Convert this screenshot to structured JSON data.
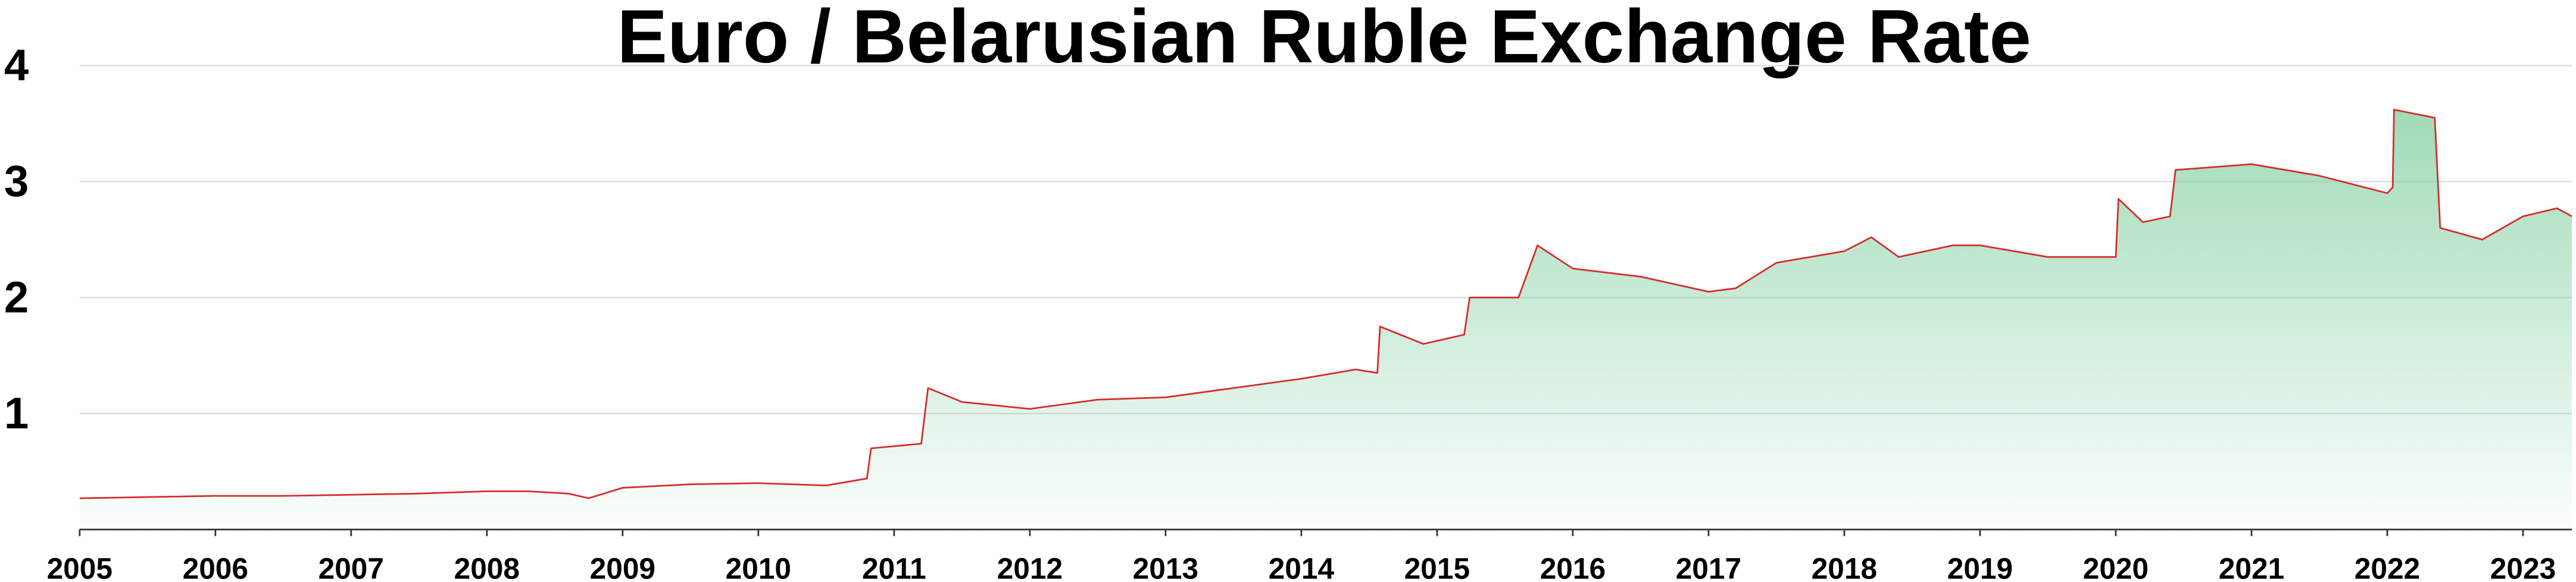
{
  "chart_data": {
    "type": "area",
    "title": "Euro / Belarusian Ruble Exchange Rate",
    "x": [
      2005.0,
      2005.5,
      2006.0,
      2006.5,
      2007.0,
      2007.5,
      2008.0,
      2008.3,
      2008.6,
      2008.75,
      2009.0,
      2009.5,
      2010.0,
      2010.5,
      2010.8,
      2010.83,
      2011.2,
      2011.25,
      2011.5,
      2012.0,
      2012.5,
      2013.0,
      2013.5,
      2014.0,
      2014.4,
      2014.56,
      2014.58,
      2014.9,
      2015.2,
      2015.24,
      2015.6,
      2015.74,
      2016.0,
      2016.5,
      2017.0,
      2017.2,
      2017.5,
      2018.0,
      2018.2,
      2018.4,
      2018.8,
      2019.0,
      2019.5,
      2020.0,
      2020.02,
      2020.2,
      2020.4,
      2020.44,
      2021.0,
      2021.5,
      2022.0,
      2022.04,
      2022.05,
      2022.35,
      2022.39,
      2022.7,
      2023.0,
      2023.25,
      2023.36
    ],
    "values": [
      0.27,
      0.28,
      0.29,
      0.29,
      0.3,
      0.31,
      0.33,
      0.33,
      0.31,
      0.27,
      0.36,
      0.39,
      0.4,
      0.38,
      0.44,
      0.7,
      0.74,
      1.22,
      1.1,
      1.04,
      1.12,
      1.14,
      1.22,
      1.3,
      1.38,
      1.35,
      1.75,
      1.6,
      1.68,
      2.0,
      2.0,
      2.45,
      2.25,
      2.18,
      2.05,
      2.08,
      2.3,
      2.4,
      2.52,
      2.35,
      2.45,
      2.45,
      2.35,
      2.35,
      2.85,
      2.65,
      2.7,
      3.1,
      3.15,
      3.05,
      2.9,
      2.95,
      3.62,
      3.55,
      2.6,
      2.5,
      2.7,
      2.77,
      2.7
    ],
    "color": "#d62b2b",
    "fill_color": "#8fd4ab",
    "xlim": [
      2005,
      2023.36
    ],
    "xticks": [
      2005,
      2006,
      2007,
      2008,
      2009,
      2010,
      2011,
      2012,
      2013,
      2014,
      2015,
      2016,
      2017,
      2018,
      2019,
      2020,
      2021,
      2022,
      2023
    ],
    "ylim": [
      0,
      4
    ],
    "yticks": [
      1,
      2,
      3,
      4
    ],
    "grid": true
  }
}
